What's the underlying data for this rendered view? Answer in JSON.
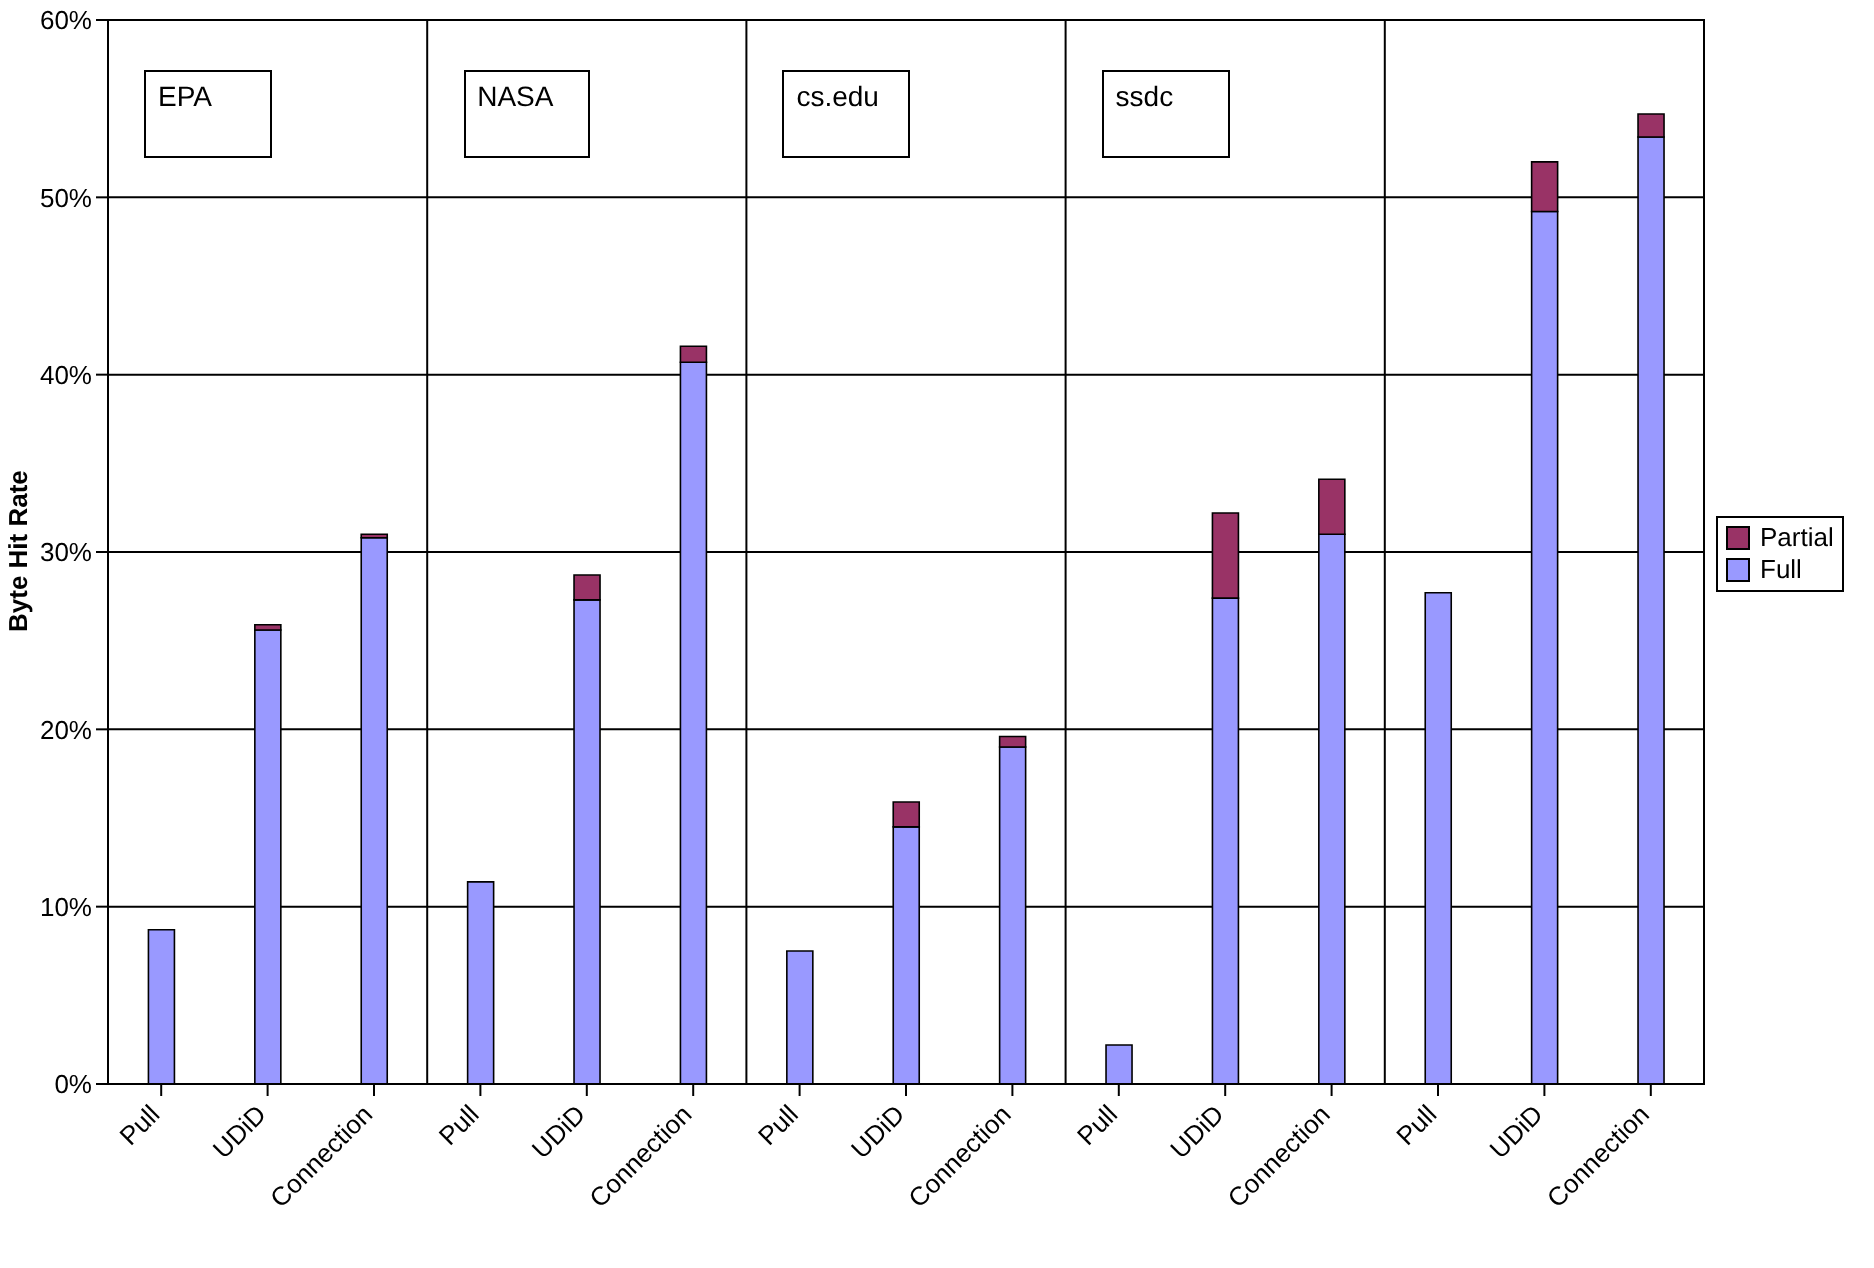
{
  "chart_data": {
    "type": "bar",
    "stacked": true,
    "ylabel": "Byte Hit Rate",
    "categories": [
      "Pull",
      "UDiD",
      "Connection",
      "Pull",
      "UDiD",
      "Connection",
      "Pull",
      "UDiD",
      "Connection",
      "Pull",
      "UDiD",
      "Connection",
      "Pull",
      "UDiD",
      "Connection"
    ],
    "series": [
      {
        "name": "Full",
        "color": "#9999ff",
        "values": [
          8.7,
          25.6,
          30.8,
          11.4,
          27.3,
          40.7,
          7.5,
          14.5,
          19.0,
          2.2,
          27.4,
          31.0,
          27.7,
          49.2,
          53.4
        ]
      },
      {
        "name": "Partial",
        "color": "#993366",
        "values": [
          null,
          0.3,
          0.2,
          null,
          1.4,
          0.9,
          null,
          1.4,
          0.6,
          null,
          4.8,
          3.1,
          null,
          2.8,
          1.3
        ]
      }
    ],
    "annotations": [
      "EPA",
      "NASA",
      "cs.edu",
      "ssdc"
    ],
    "ylim": [
      0,
      60
    ],
    "yticks": [
      {
        "value": 0,
        "label": "0%"
      },
      {
        "value": 10,
        "label": "10%"
      },
      {
        "value": 20,
        "label": "20%"
      },
      {
        "value": 30,
        "label": "30%"
      },
      {
        "value": 40,
        "label": "40%"
      },
      {
        "value": 50,
        "label": "50%"
      },
      {
        "value": 60,
        "label": "60%"
      }
    ],
    "grid": true,
    "legend": "right"
  }
}
